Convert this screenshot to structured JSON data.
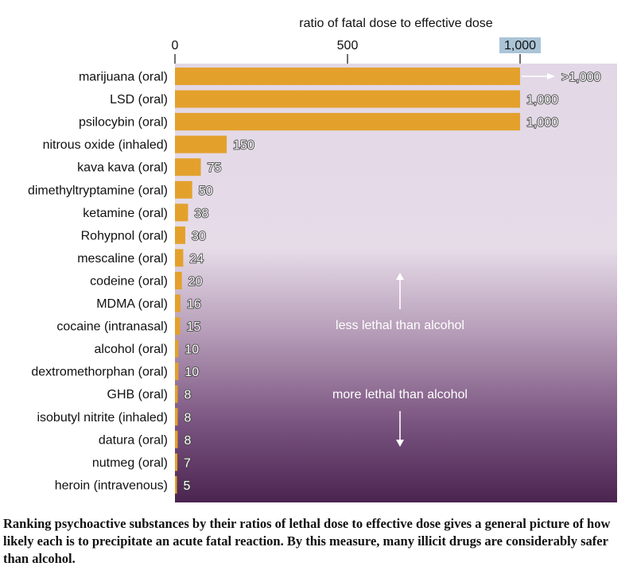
{
  "chart_data": {
    "type": "bar",
    "orientation": "horizontal",
    "xlabel": "ratio of fatal dose to effective dose",
    "xlim": [
      0,
      1250
    ],
    "xticks": [
      0,
      500,
      1000
    ],
    "xtick_labels": [
      "0",
      "500",
      "1,000"
    ],
    "categories": [
      "marijuana (oral)",
      "LSD (oral)",
      "psilocybin (oral)",
      "nitrous oxide (inhaled)",
      "kava kava (oral)",
      "dimethyltryptamine (oral)",
      "ketamine (oral)",
      "Rohypnol (oral)",
      "mescaline (oral)",
      "codeine (oral)",
      "MDMA (oral)",
      "cocaine (intranasal)",
      "alcohol (oral)",
      "dextromethorphan (oral)",
      "GHB (oral)",
      "isobutyl nitrite (inhaled)",
      "datura (oral)",
      "nutmeg (oral)",
      "heroin (intravenous)"
    ],
    "values": [
      1000,
      1000,
      1000,
      150,
      75,
      50,
      38,
      30,
      24,
      20,
      16,
      15,
      10,
      10,
      8,
      8,
      8,
      7,
      5
    ],
    "value_labels": [
      ">1,000",
      "1,000",
      "1,000",
      "150",
      "75",
      "50",
      "38",
      "30",
      "24",
      "20",
      "16",
      "15",
      "10",
      "10",
      "8",
      "8",
      "8",
      "7",
      "5"
    ],
    "bar_color": "#e3a12c",
    "background_gradient": [
      "#e2d7e6",
      "#e6dce8",
      "#4b2450"
    ],
    "annotations": {
      "upper": "less lethal than alcohol",
      "lower": "more lethal than alcohol"
    }
  },
  "caption": "Ranking psychoactive substances by their ratios of lethal dose to effective dose gives a general picture of how likely each is to precipitate an acute fatal reaction. By this measure, many illicit drugs are considerably safer than alcohol."
}
